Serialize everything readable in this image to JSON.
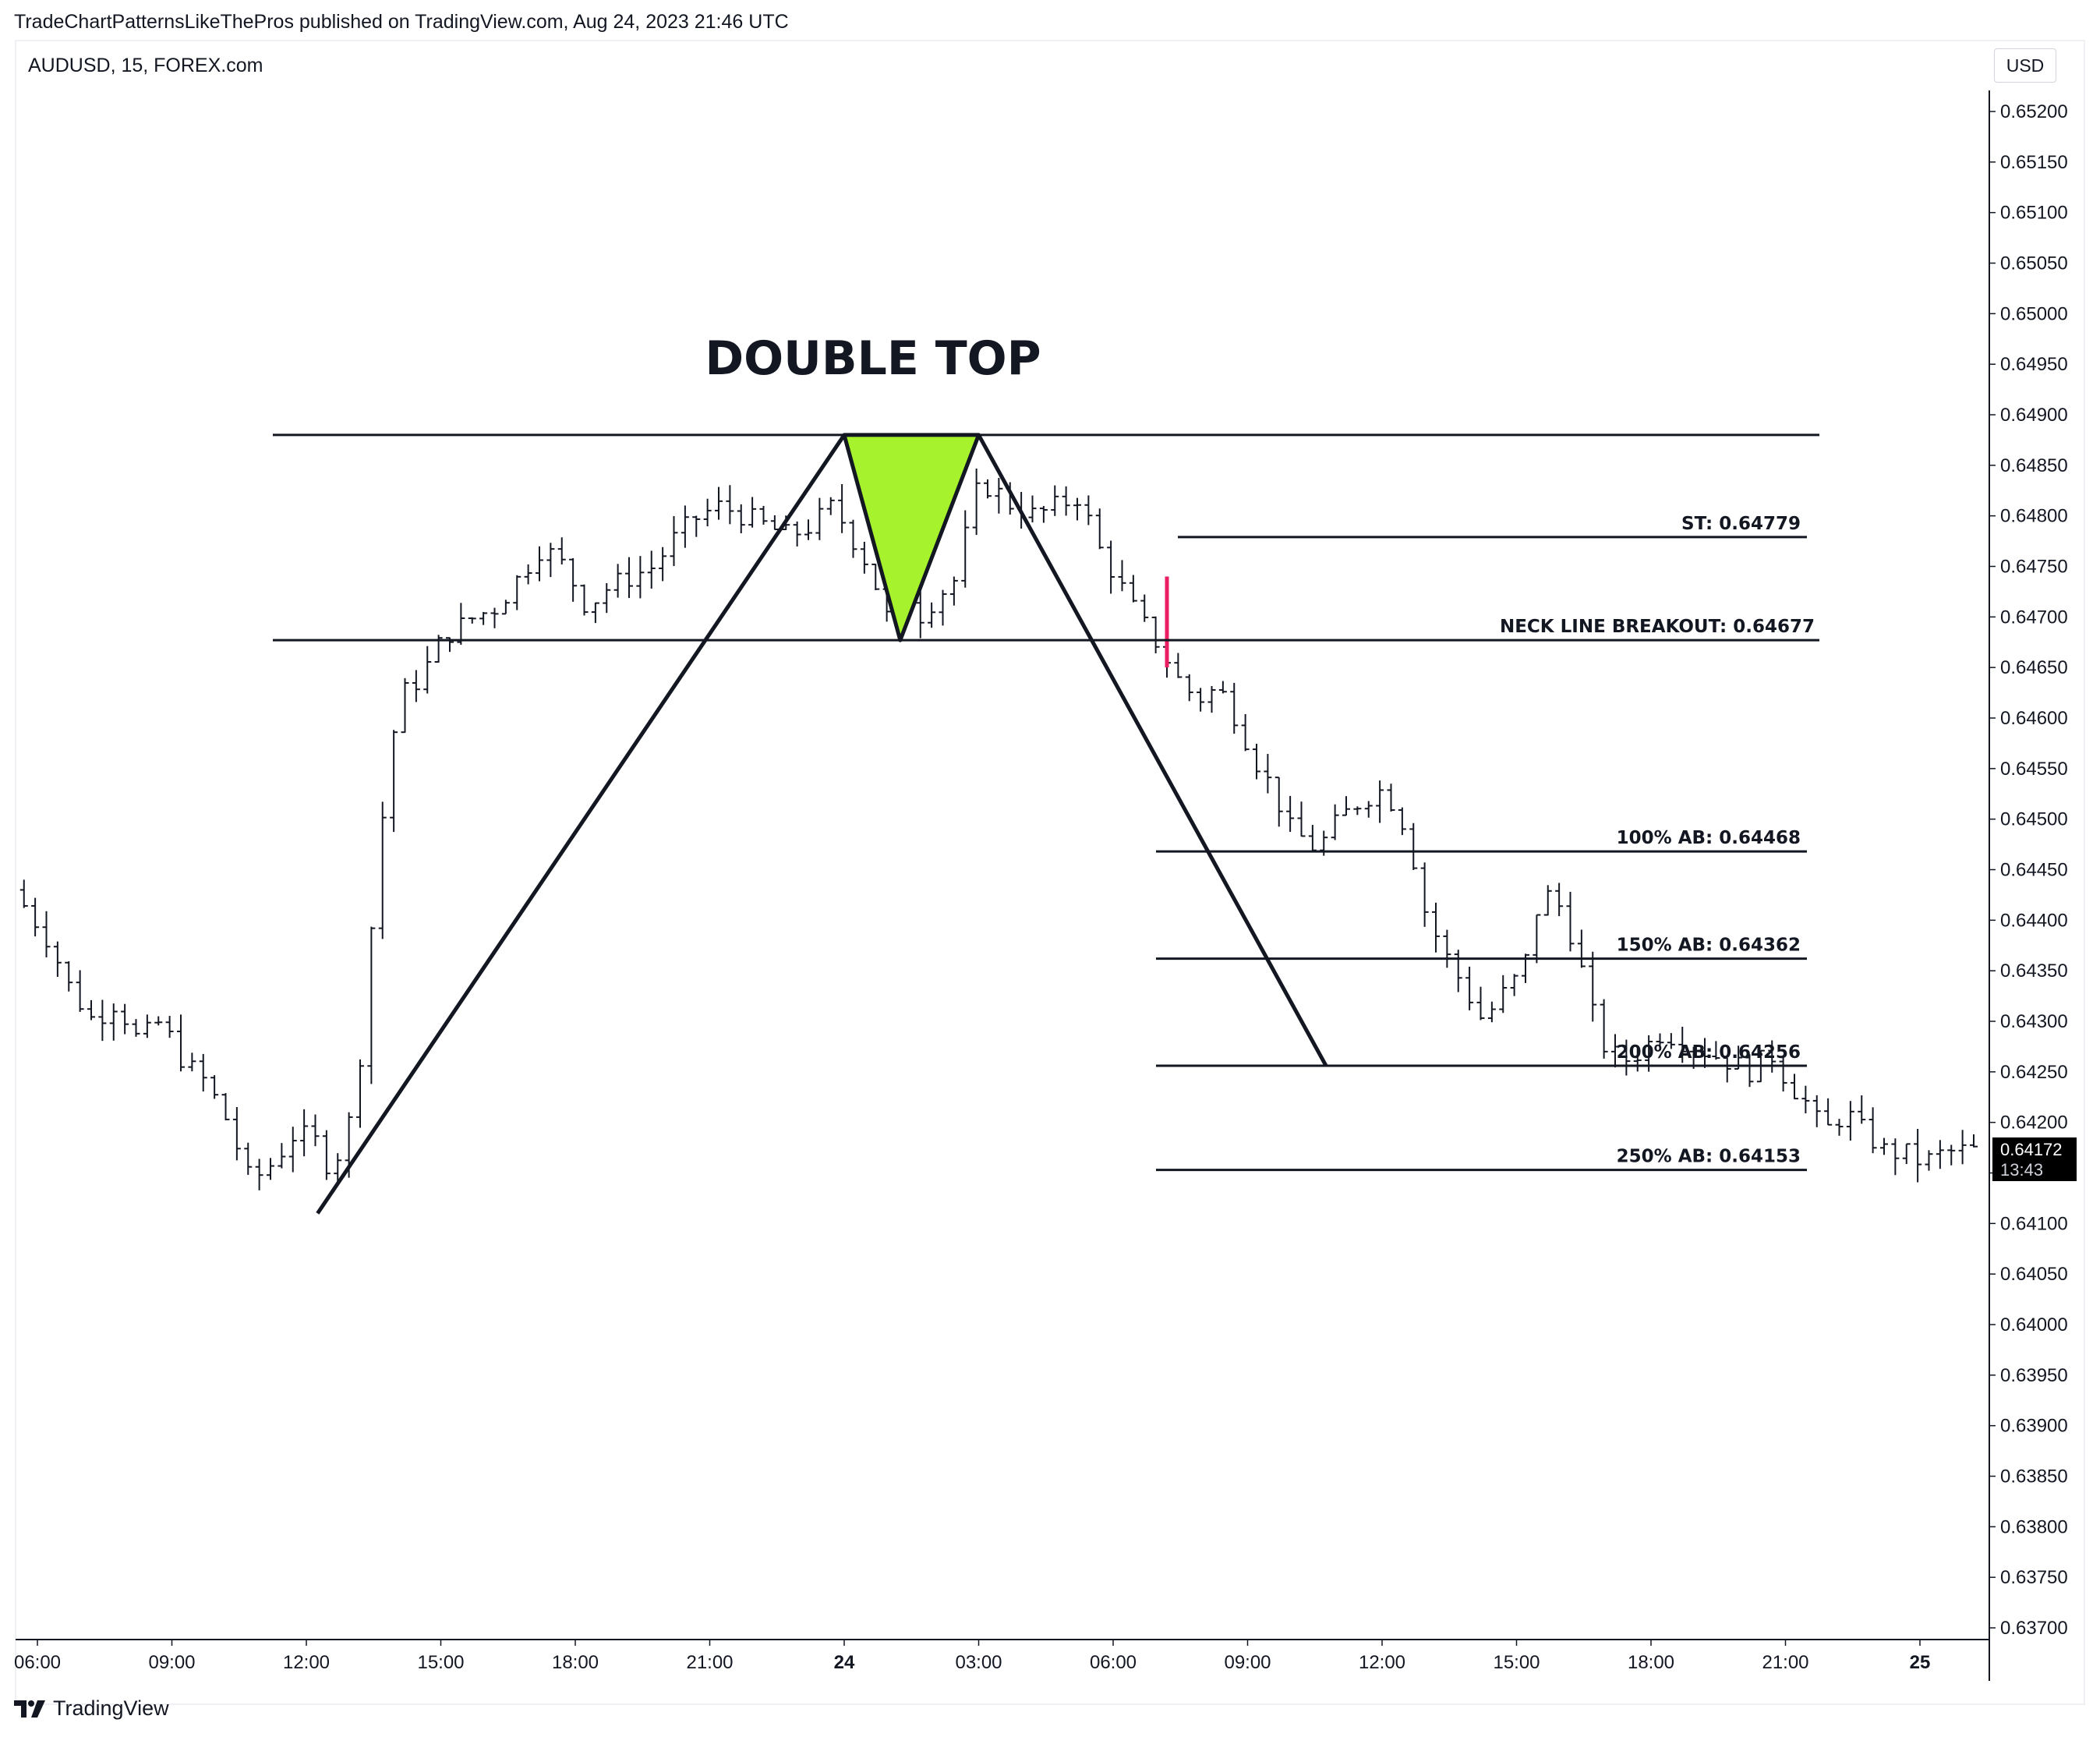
{
  "header": {
    "published_text": "TradeChartPatternsLikeThePros published on TradingView.com, Aug 24, 2023 21:46 UTC"
  },
  "symbol": {
    "title": "AUDUSD, 15, FOREX.com"
  },
  "currency": "USD",
  "footer": {
    "brand": "TradingView",
    "logo_icon": "tradingview-logo-icon"
  },
  "colors": {
    "candle": "#131722",
    "triangle_fill": "#a6f22c",
    "breakout_marker": "#e91e63",
    "badge_bg": "#000000"
  },
  "chart_data": {
    "type": "ohlc-bar",
    "title": "DOUBLE TOP",
    "x_ticks": [
      "06:00",
      "09:00",
      "12:00",
      "15:00",
      "18:00",
      "21:00",
      "24",
      "03:00",
      "06:00",
      "09:00",
      "12:00",
      "15:00",
      "18:00",
      "21:00",
      "25"
    ],
    "y_ticks": [
      "0.65200",
      "0.65150",
      "0.65100",
      "0.65050",
      "0.65000",
      "0.64950",
      "0.64900",
      "0.64850",
      "0.64800",
      "0.64750",
      "0.64700",
      "0.64650",
      "0.64600",
      "0.64550",
      "0.64500",
      "0.64450",
      "0.64400",
      "0.64350",
      "0.64300",
      "0.64250",
      "0.64200",
      "0.64150",
      "0.64100",
      "0.64050",
      "0.64000",
      "0.63950",
      "0.63900",
      "0.63850",
      "0.63800",
      "0.63750",
      "0.63700"
    ],
    "ylim": [
      0.6369,
      0.6523
    ],
    "levels": [
      {
        "label": "ST: 0.64779",
        "price": 0.64779
      },
      {
        "label": "NECK LINE BREAKOUT: 0.64677",
        "price": 0.64677
      },
      {
        "label": "100% AB: 0.64468",
        "price": 0.64468
      },
      {
        "label": "150% AB: 0.64362",
        "price": 0.64362
      },
      {
        "label": "200% AB: 0.64256",
        "price": 0.64256
      },
      {
        "label": "250% AB: 0.64153",
        "price": 0.64153
      }
    ],
    "top_line_price": 0.6488,
    "pattern_points": [
      {
        "time": "12:15",
        "price": 0.6411
      },
      {
        "time": "24 00:00",
        "price": 0.6488
      },
      {
        "time": "24 01:15",
        "price": 0.64677
      },
      {
        "time": "24 03:00",
        "price": 0.6488
      },
      {
        "time": "24 10:45",
        "price": 0.64256
      }
    ],
    "last_price": {
      "price": "0.64172",
      "countdown": "13:43"
    }
  }
}
